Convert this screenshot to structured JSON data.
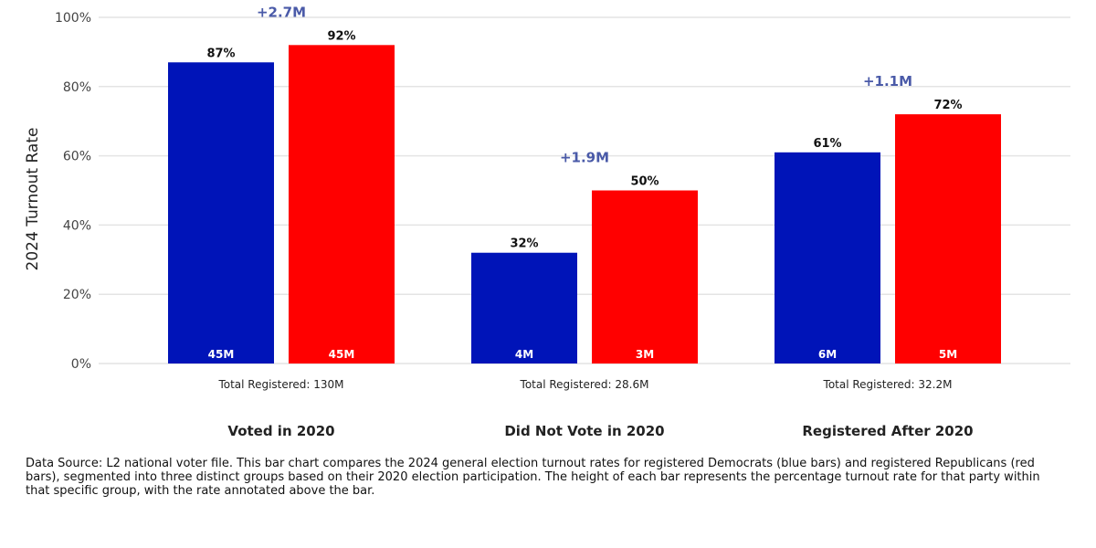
{
  "chart_data": {
    "type": "bar",
    "ylabel": "2024 Turnout Rate",
    "xlabel": "",
    "ylim": [
      0,
      100
    ],
    "yticks": [
      "0%",
      "20%",
      "40%",
      "60%",
      "80%",
      "100%"
    ],
    "ytick_values": [
      0,
      20,
      40,
      60,
      80,
      100
    ],
    "grid": true,
    "categories": [
      "Voted in 2020",
      "Did Not Vote in 2020",
      "Registered After 2020"
    ],
    "subtitles": [
      "Total Registered: 130M",
      "Total Registered: 28.6M",
      "Total Registered: 32.2M"
    ],
    "gap_labels": [
      "+2.7M",
      "+1.9M",
      "+1.1M"
    ],
    "series": [
      {
        "color": "#0014b8",
        "values": [
          87,
          32,
          61
        ],
        "labels": [
          "87%",
          "32%",
          "61%"
        ],
        "inner_labels": [
          "45M",
          "4M",
          "6M"
        ]
      },
      {
        "color": "#ff0000",
        "values": [
          92,
          50,
          72
        ],
        "labels": [
          "92%",
          "50%",
          "72%"
        ],
        "inner_labels": [
          "45M",
          "3M",
          "5M"
        ]
      }
    ],
    "gap_label_color": "#4a5aa8"
  },
  "caption": "Data Source: L2 national voter file. This bar chart compares the 2024 general election turnout rates for registered Democrats (blue bars) and registered Republicans (red bars), segmented into three distinct groups based on their 2020 election participation. The height of each bar represents the percentage turnout rate for that party within that specific group, with the rate annotated above the bar."
}
